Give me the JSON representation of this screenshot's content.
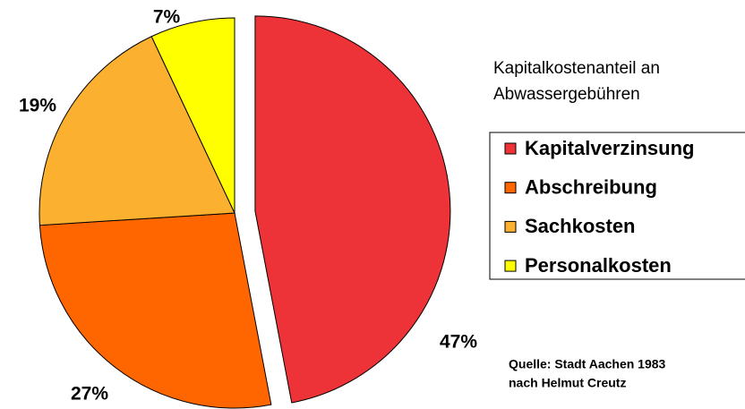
{
  "chart_data": {
    "type": "pie",
    "title": [
      "Kapitalkostenanteil an",
      "Abwassergebühren"
    ],
    "categories": [
      "Kapitalverzinsung",
      "Abschreibung",
      "Sachkosten",
      "Personalkosten"
    ],
    "values": [
      47,
      27,
      19,
      7
    ],
    "value_labels": [
      "47%",
      "27%",
      "19%",
      "7%"
    ],
    "colors": [
      "#ee3338",
      "#ff6600",
      "#fbb030",
      "#ffff00"
    ],
    "annotations": [
      "Quelle: Stadt Aachen 1983",
      "nach Helmut Creutz"
    ]
  }
}
